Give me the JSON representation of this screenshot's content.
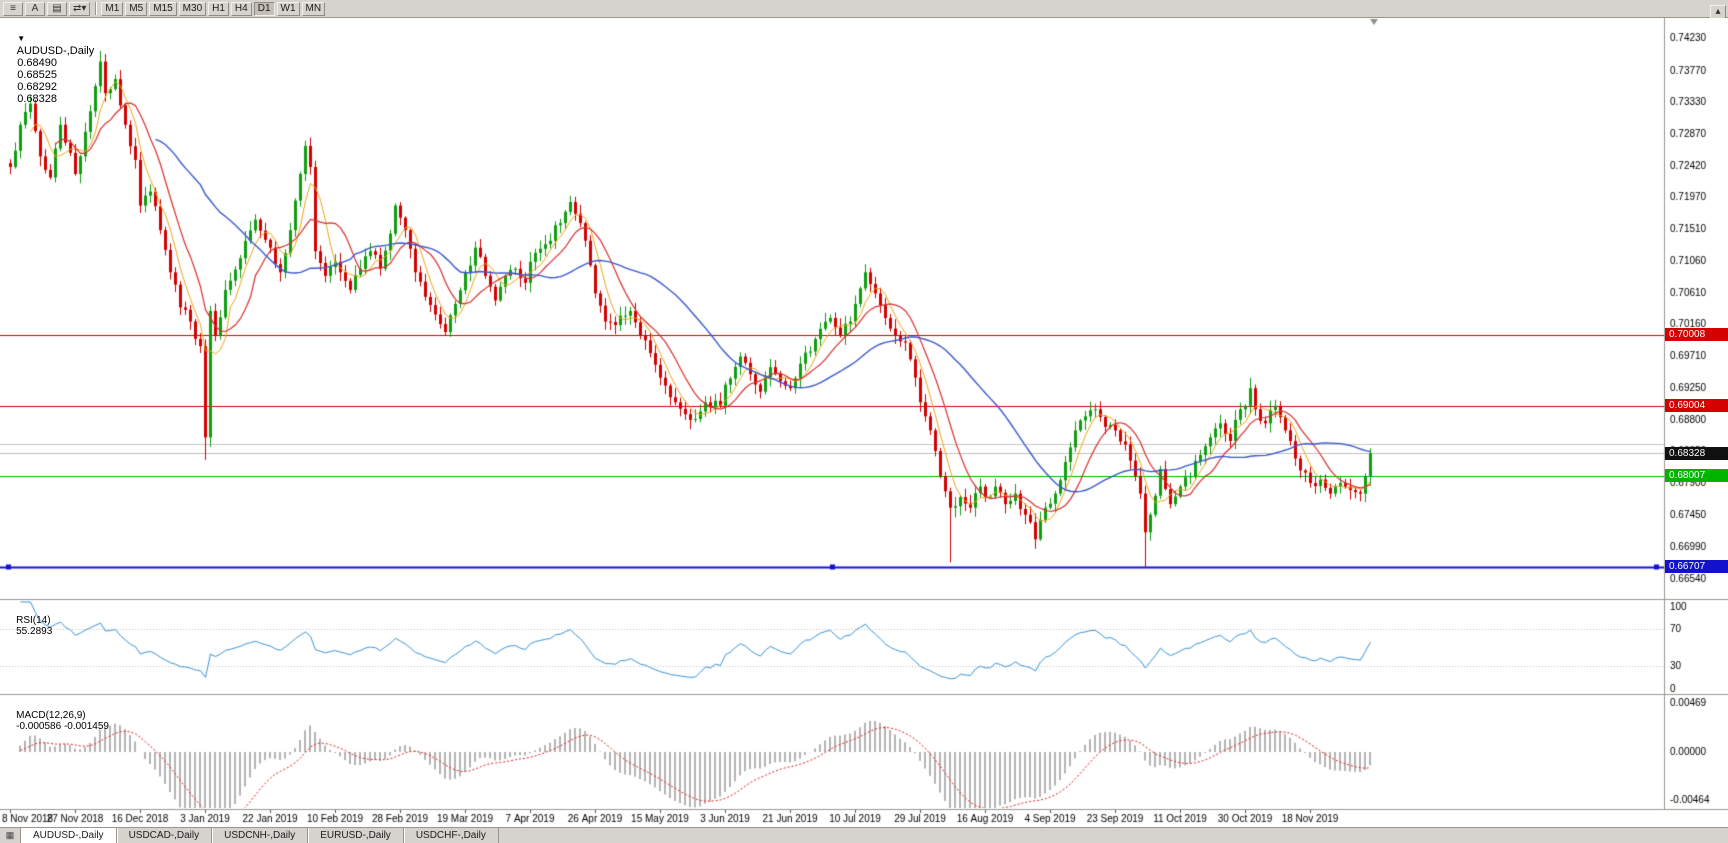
{
  "toolbar": {
    "icon_buttons": [
      {
        "name": "charts-menu",
        "glyph": "≡"
      },
      {
        "name": "text-tool",
        "glyph": "A"
      },
      {
        "name": "template",
        "glyph": "▤"
      },
      {
        "name": "cycle-symbols",
        "glyph": "⇄",
        "caret": "▾"
      }
    ],
    "timeframes": [
      "M1",
      "M5",
      "M15",
      "M30",
      "H1",
      "H4",
      "D1",
      "W1",
      "MN"
    ],
    "active_timeframe": "D1",
    "scroll_up_glyph": "▴"
  },
  "chart": {
    "symbol_line": {
      "toggle_glyph": "▼",
      "symbol": "AUDUSD-,Daily",
      "open": "0.68490",
      "high": "0.68525",
      "low": "0.68292",
      "close": "0.68328"
    },
    "price_axis": {
      "labels": [
        "0.74230",
        "0.73770",
        "0.73330",
        "0.72870",
        "0.72420",
        "0.71970",
        "0.71510",
        "0.71060",
        "0.70610",
        "0.70160",
        "0.69710",
        "0.69250",
        "0.68800",
        "0.68350",
        "0.67900",
        "0.67450",
        "0.66990",
        "0.66540"
      ]
    },
    "price_tags": [
      {
        "name": "resistance-tag-1",
        "text": "0.70008",
        "price": 0.70008,
        "bg": "#d60000",
        "interactable": true
      },
      {
        "name": "resistance-tag-2",
        "text": "0.69004",
        "price": 0.69004,
        "bg": "#d60000",
        "interactable": true
      },
      {
        "name": "current-price-tag",
        "text": "0.68328",
        "price": 0.68328,
        "bg": "#101010",
        "interactable": false
      },
      {
        "name": "support-tag-green",
        "text": "0.68007",
        "price": 0.68007,
        "bg": "#00b400",
        "interactable": true
      },
      {
        "name": "support-tag-blue",
        "text": "0.66707",
        "price": 0.66707,
        "bg": "#1212cc",
        "interactable": true
      }
    ],
    "date_axis": {
      "ticks": [
        {
          "label": "8 Nov 2018",
          "i": 0
        },
        {
          "label": "27 Nov 2018",
          "i": 13
        },
        {
          "label": "16 Dec 2018",
          "i": 26
        },
        {
          "label": "3 Jan 2019",
          "i": 39
        },
        {
          "label": "22 Jan 2019",
          "i": 52
        },
        {
          "label": "10 Feb 2019",
          "i": 65
        },
        {
          "label": "28 Feb 2019",
          "i": 78
        },
        {
          "label": "19 Mar 2019",
          "i": 91
        },
        {
          "label": "7 Apr 2019",
          "i": 104
        },
        {
          "label": "26 Apr 2019",
          "i": 117
        },
        {
          "label": "15 May 2019",
          "i": 130
        },
        {
          "label": "3 Jun 2019",
          "i": 143
        },
        {
          "label": "21 Jun 2019",
          "i": 156
        },
        {
          "label": "10 Jul 2019",
          "i": 169
        },
        {
          "label": "29 Jul 2019",
          "i": 182
        },
        {
          "label": "16 Aug 2019",
          "i": 195
        },
        {
          "label": "4 Sep 2019",
          "i": 208
        },
        {
          "label": "23 Sep 2019",
          "i": 221
        },
        {
          "label": "11 Oct 2019",
          "i": 234
        },
        {
          "label": "30 Oct 2019",
          "i": 247
        },
        {
          "label": "18 Nov 2019",
          "i": 260
        }
      ]
    }
  },
  "rsi": {
    "label": "RSI(14)",
    "value": "55.2893",
    "axis_labels": [
      "100",
      "70",
      "30",
      "0"
    ],
    "levels": [
      70,
      30
    ],
    "color": "#3b94d6"
  },
  "macd": {
    "label": "MACD(12,26,9)",
    "values": "-0.000586 -0.001459",
    "axis_labels": [
      "0.00469",
      "0.00000",
      "-0.00464"
    ],
    "hist_color": "#b4b4b4",
    "signal_color": "#e02020"
  },
  "tabs": {
    "items": [
      "AUDUSD-,Daily",
      "USDCAD-,Daily",
      "USDCNH-,Daily",
      "EURUSD-,Daily",
      "USDCHF-,Daily"
    ],
    "active": "AUDUSD-,Daily"
  },
  "chart_data": {
    "type": "candlestick",
    "symbol": "AUDUSD",
    "timeframe": "Daily",
    "ohlc_display": {
      "open": 0.6849,
      "high": 0.68525,
      "low": 0.68292,
      "close": 0.68328
    },
    "price_range": {
      "max": 0.7452,
      "min": 0.6625
    },
    "candles_count": 273,
    "seed": 7,
    "close_waypoints": [
      [
        0,
        0.724
      ],
      [
        2,
        0.73
      ],
      [
        4,
        0.733
      ],
      [
        6,
        0.7255
      ],
      [
        8,
        0.7225
      ],
      [
        10,
        0.73
      ],
      [
        12,
        0.726
      ],
      [
        13,
        0.723
      ],
      [
        15,
        0.729
      ],
      [
        17,
        0.7355
      ],
      [
        18,
        0.739
      ],
      [
        19,
        0.7345
      ],
      [
        21,
        0.7365
      ],
      [
        23,
        0.73
      ],
      [
        25,
        0.725
      ],
      [
        26,
        0.7185
      ],
      [
        28,
        0.7205
      ],
      [
        30,
        0.715
      ],
      [
        32,
        0.709
      ],
      [
        34,
        0.704
      ],
      [
        36,
        0.702
      ],
      [
        38,
        0.6985
      ],
      [
        39,
        0.6855
      ],
      [
        40,
        0.7035
      ],
      [
        41,
        0.7
      ],
      [
        43,
        0.7065
      ],
      [
        46,
        0.711
      ],
      [
        49,
        0.7165
      ],
      [
        52,
        0.7125
      ],
      [
        54,
        0.709
      ],
      [
        56,
        0.715
      ],
      [
        58,
        0.723
      ],
      [
        59,
        0.727
      ],
      [
        60,
        0.724
      ],
      [
        61,
        0.712
      ],
      [
        63,
        0.7085
      ],
      [
        65,
        0.7105
      ],
      [
        66,
        0.709
      ],
      [
        68,
        0.7065
      ],
      [
        70,
        0.7095
      ],
      [
        72,
        0.712
      ],
      [
        74,
        0.7095
      ],
      [
        76,
        0.7145
      ],
      [
        77,
        0.7185
      ],
      [
        79,
        0.715
      ],
      [
        81,
        0.709
      ],
      [
        83,
        0.7055
      ],
      [
        85,
        0.703
      ],
      [
        87,
        0.7005
      ],
      [
        89,
        0.7045
      ],
      [
        91,
        0.709
      ],
      [
        93,
        0.7125
      ],
      [
        95,
        0.7085
      ],
      [
        97,
        0.705
      ],
      [
        99,
        0.7085
      ],
      [
        101,
        0.7095
      ],
      [
        103,
        0.7075
      ],
      [
        104,
        0.7105
      ],
      [
        107,
        0.713
      ],
      [
        110,
        0.716
      ],
      [
        112,
        0.719
      ],
      [
        114,
        0.716
      ],
      [
        116,
        0.71
      ],
      [
        117,
        0.706
      ],
      [
        119,
        0.702
      ],
      [
        121,
        0.7015
      ],
      [
        124,
        0.7035
      ],
      [
        126,
        0.7
      ],
      [
        128,
        0.6975
      ],
      [
        130,
        0.694
      ],
      [
        133,
        0.6905
      ],
      [
        136,
        0.688
      ],
      [
        139,
        0.6905
      ],
      [
        142,
        0.69
      ],
      [
        143,
        0.693
      ],
      [
        146,
        0.697
      ],
      [
        148,
        0.6945
      ],
      [
        150,
        0.692
      ],
      [
        152,
        0.6955
      ],
      [
        154,
        0.6935
      ],
      [
        156,
        0.6925
      ],
      [
        158,
        0.696
      ],
      [
        161,
        0.6995
      ],
      [
        164,
        0.7025
      ],
      [
        166,
        0.7
      ],
      [
        168,
        0.702
      ],
      [
        169,
        0.7045
      ],
      [
        171,
        0.709
      ],
      [
        173,
        0.706
      ],
      [
        175,
        0.7025
      ],
      [
        177,
        0.7
      ],
      [
        179,
        0.699
      ],
      [
        181,
        0.694
      ],
      [
        182,
        0.6905
      ],
      [
        184,
        0.6865
      ],
      [
        186,
        0.68
      ],
      [
        188,
        0.6755
      ],
      [
        190,
        0.677
      ],
      [
        192,
        0.6755
      ],
      [
        194,
        0.6785
      ],
      [
        195,
        0.677
      ],
      [
        197,
        0.6785
      ],
      [
        199,
        0.676
      ],
      [
        201,
        0.6775
      ],
      [
        203,
        0.6745
      ],
      [
        205,
        0.671
      ],
      [
        207,
        0.6755
      ],
      [
        209,
        0.6775
      ],
      [
        211,
        0.682
      ],
      [
        213,
        0.6865
      ],
      [
        215,
        0.6885
      ],
      [
        217,
        0.6895
      ],
      [
        219,
        0.687
      ],
      [
        221,
        0.6865
      ],
      [
        223,
        0.6845
      ],
      [
        225,
        0.68
      ],
      [
        226,
        0.6775
      ],
      [
        227,
        0.672
      ],
      [
        228,
        0.6745
      ],
      [
        230,
        0.681
      ],
      [
        232,
        0.676
      ],
      [
        234,
        0.6785
      ],
      [
        236,
        0.68
      ],
      [
        238,
        0.683
      ],
      [
        240,
        0.6855
      ],
      [
        242,
        0.6875
      ],
      [
        244,
        0.685
      ],
      [
        246,
        0.6895
      ],
      [
        247,
        0.69
      ],
      [
        248,
        0.6925
      ],
      [
        249,
        0.6895
      ],
      [
        251,
        0.6875
      ],
      [
        253,
        0.69
      ],
      [
        255,
        0.6865
      ],
      [
        257,
        0.6825
      ],
      [
        259,
        0.6805
      ],
      [
        260,
        0.679
      ],
      [
        262,
        0.6795
      ],
      [
        264,
        0.6775
      ],
      [
        266,
        0.679
      ],
      [
        268,
        0.678
      ],
      [
        270,
        0.6775
      ],
      [
        271,
        0.68
      ],
      [
        272,
        0.68328
      ]
    ],
    "spike_lows": [
      [
        39,
        0.6823
      ],
      [
        188,
        0.6677
      ],
      [
        227,
        0.667
      ]
    ],
    "spike_highs": [
      [
        18,
        0.7405
      ],
      [
        248,
        0.694
      ]
    ],
    "hlines": [
      {
        "price": 0.70008,
        "color": "#d60000",
        "width": 1,
        "handles": false
      },
      {
        "price": 0.69004,
        "color": "#d60000",
        "width": 1,
        "handles": false
      },
      {
        "price": 0.6845,
        "color": "#c8c8c8",
        "width": 1,
        "handles": false
      },
      {
        "price": 0.68328,
        "color": "#c0c0c0",
        "width": 1,
        "handles": false
      },
      {
        "price": 0.68007,
        "color": "#00b400",
        "width": 1,
        "handles": false
      },
      {
        "price": 0.66707,
        "color": "#1212cc",
        "width": 2,
        "handles": true
      }
    ],
    "moving_averages": [
      {
        "period": 5,
        "color": "#efa61b",
        "width": 1
      },
      {
        "period": 10,
        "color": "#d83030",
        "width": 1.2
      },
      {
        "period": 30,
        "color": "#3b59d1",
        "width": 1.4
      }
    ],
    "rsi_period": 14,
    "macd_params": {
      "fast": 12,
      "slow": 26,
      "signal": 9
    },
    "bull_color": "#0f9e0f",
    "bear_color": "#d20000"
  }
}
